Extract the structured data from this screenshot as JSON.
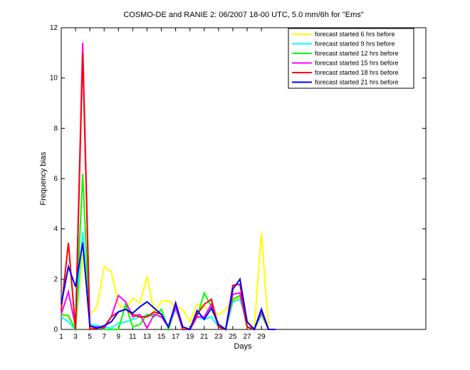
{
  "chart_data": {
    "type": "line",
    "title": "COSMO-DE and RANIE 2: 06/2007 18-00 UTC, 5.0 mm/6h for \"Ems\"",
    "xlabel": "Days",
    "ylabel": "Frequency bias",
    "x": [
      1,
      2,
      3,
      4,
      5,
      6,
      7,
      8,
      9,
      10,
      11,
      12,
      13,
      14,
      15,
      16,
      17,
      18,
      19,
      20,
      21,
      22,
      23,
      24,
      25,
      26,
      27,
      28,
      29,
      30,
      31
    ],
    "xlim": [
      1,
      52
    ],
    "xticks": [
      1,
      3,
      5,
      7,
      9,
      11,
      13,
      15,
      17,
      19,
      21,
      23,
      25,
      27,
      29
    ],
    "ylim": [
      0,
      12
    ],
    "yticks": [
      0,
      2,
      4,
      6,
      8,
      10,
      12
    ],
    "legend_position": "upper right",
    "series": [
      {
        "name": "forecast started 6 hrs before",
        "color": "#ffff00",
        "values": [
          0.6,
          0.5,
          0,
          3.0,
          0.6,
          0.9,
          2.5,
          2.3,
          1.0,
          0.8,
          1.25,
          1.05,
          2.1,
          0.7,
          1.1,
          1.15,
          0.9,
          0.8,
          0.3,
          1.0,
          0.9,
          0.7,
          0.6,
          0.8,
          1.1,
          1.3,
          0.4,
          0,
          3.85,
          0,
          0
        ]
      },
      {
        "name": "forecast started 9 hrs before",
        "color": "#00ffff",
        "values": [
          0.5,
          0.3,
          0,
          3.9,
          0.2,
          0.15,
          0.1,
          0.05,
          0.25,
          0.3,
          0.4,
          0.5,
          0.55,
          0.6,
          0.5,
          0.1,
          0.8,
          0.1,
          0,
          0.5,
          0.4,
          0.5,
          0.1,
          0,
          1.1,
          1.2,
          0.3,
          0,
          0.6,
          0,
          0
        ]
      },
      {
        "name": "forecast started 12 hrs before",
        "color": "#00ff00",
        "values": [
          0.6,
          0.55,
          0,
          6.2,
          0,
          0.1,
          0,
          0,
          0,
          1.0,
          0.1,
          0.2,
          0.6,
          0.5,
          0.8,
          0,
          0.9,
          0,
          0,
          0.5,
          1.45,
          0.9,
          0.2,
          0,
          1.2,
          1.35,
          0.1,
          0,
          0.6,
          0,
          0
        ]
      },
      {
        "name": "forecast started 15 hrs before",
        "color": "#ff00ff",
        "values": [
          0.6,
          1.5,
          0.1,
          11.4,
          0.1,
          0.1,
          0.05,
          0.5,
          1.35,
          1.1,
          0.5,
          0.6,
          0.05,
          0.6,
          0.5,
          0.1,
          0.9,
          0,
          0,
          0.5,
          0.5,
          1.0,
          0.1,
          0,
          1.4,
          1.45,
          0.1,
          0,
          0.7,
          0,
          0
        ]
      },
      {
        "name": "forecast started 18 hrs before",
        "color": "#ff0000",
        "values": [
          0.8,
          3.45,
          0,
          11.0,
          0,
          0.05,
          0.1,
          0.5,
          0.7,
          0.8,
          0.6,
          0.5,
          0.5,
          0.7,
          0.6,
          0.1,
          1.05,
          0,
          0,
          0.6,
          1.0,
          1.2,
          0.1,
          0,
          1.75,
          1.8,
          0.1,
          0,
          0.8,
          0,
          0
        ]
      },
      {
        "name": "forecast started 21 hrs before",
        "color": "#0000ff",
        "values": [
          1.0,
          2.5,
          1.7,
          3.45,
          0.15,
          0.05,
          0.15,
          0.3,
          0.7,
          0.8,
          0.65,
          0.9,
          1.1,
          0.85,
          0.6,
          0.1,
          1.05,
          0.1,
          0,
          0.75,
          0.4,
          0.85,
          0.2,
          0,
          1.6,
          2.0,
          0.3,
          0,
          0.8,
          0,
          0
        ]
      }
    ]
  }
}
